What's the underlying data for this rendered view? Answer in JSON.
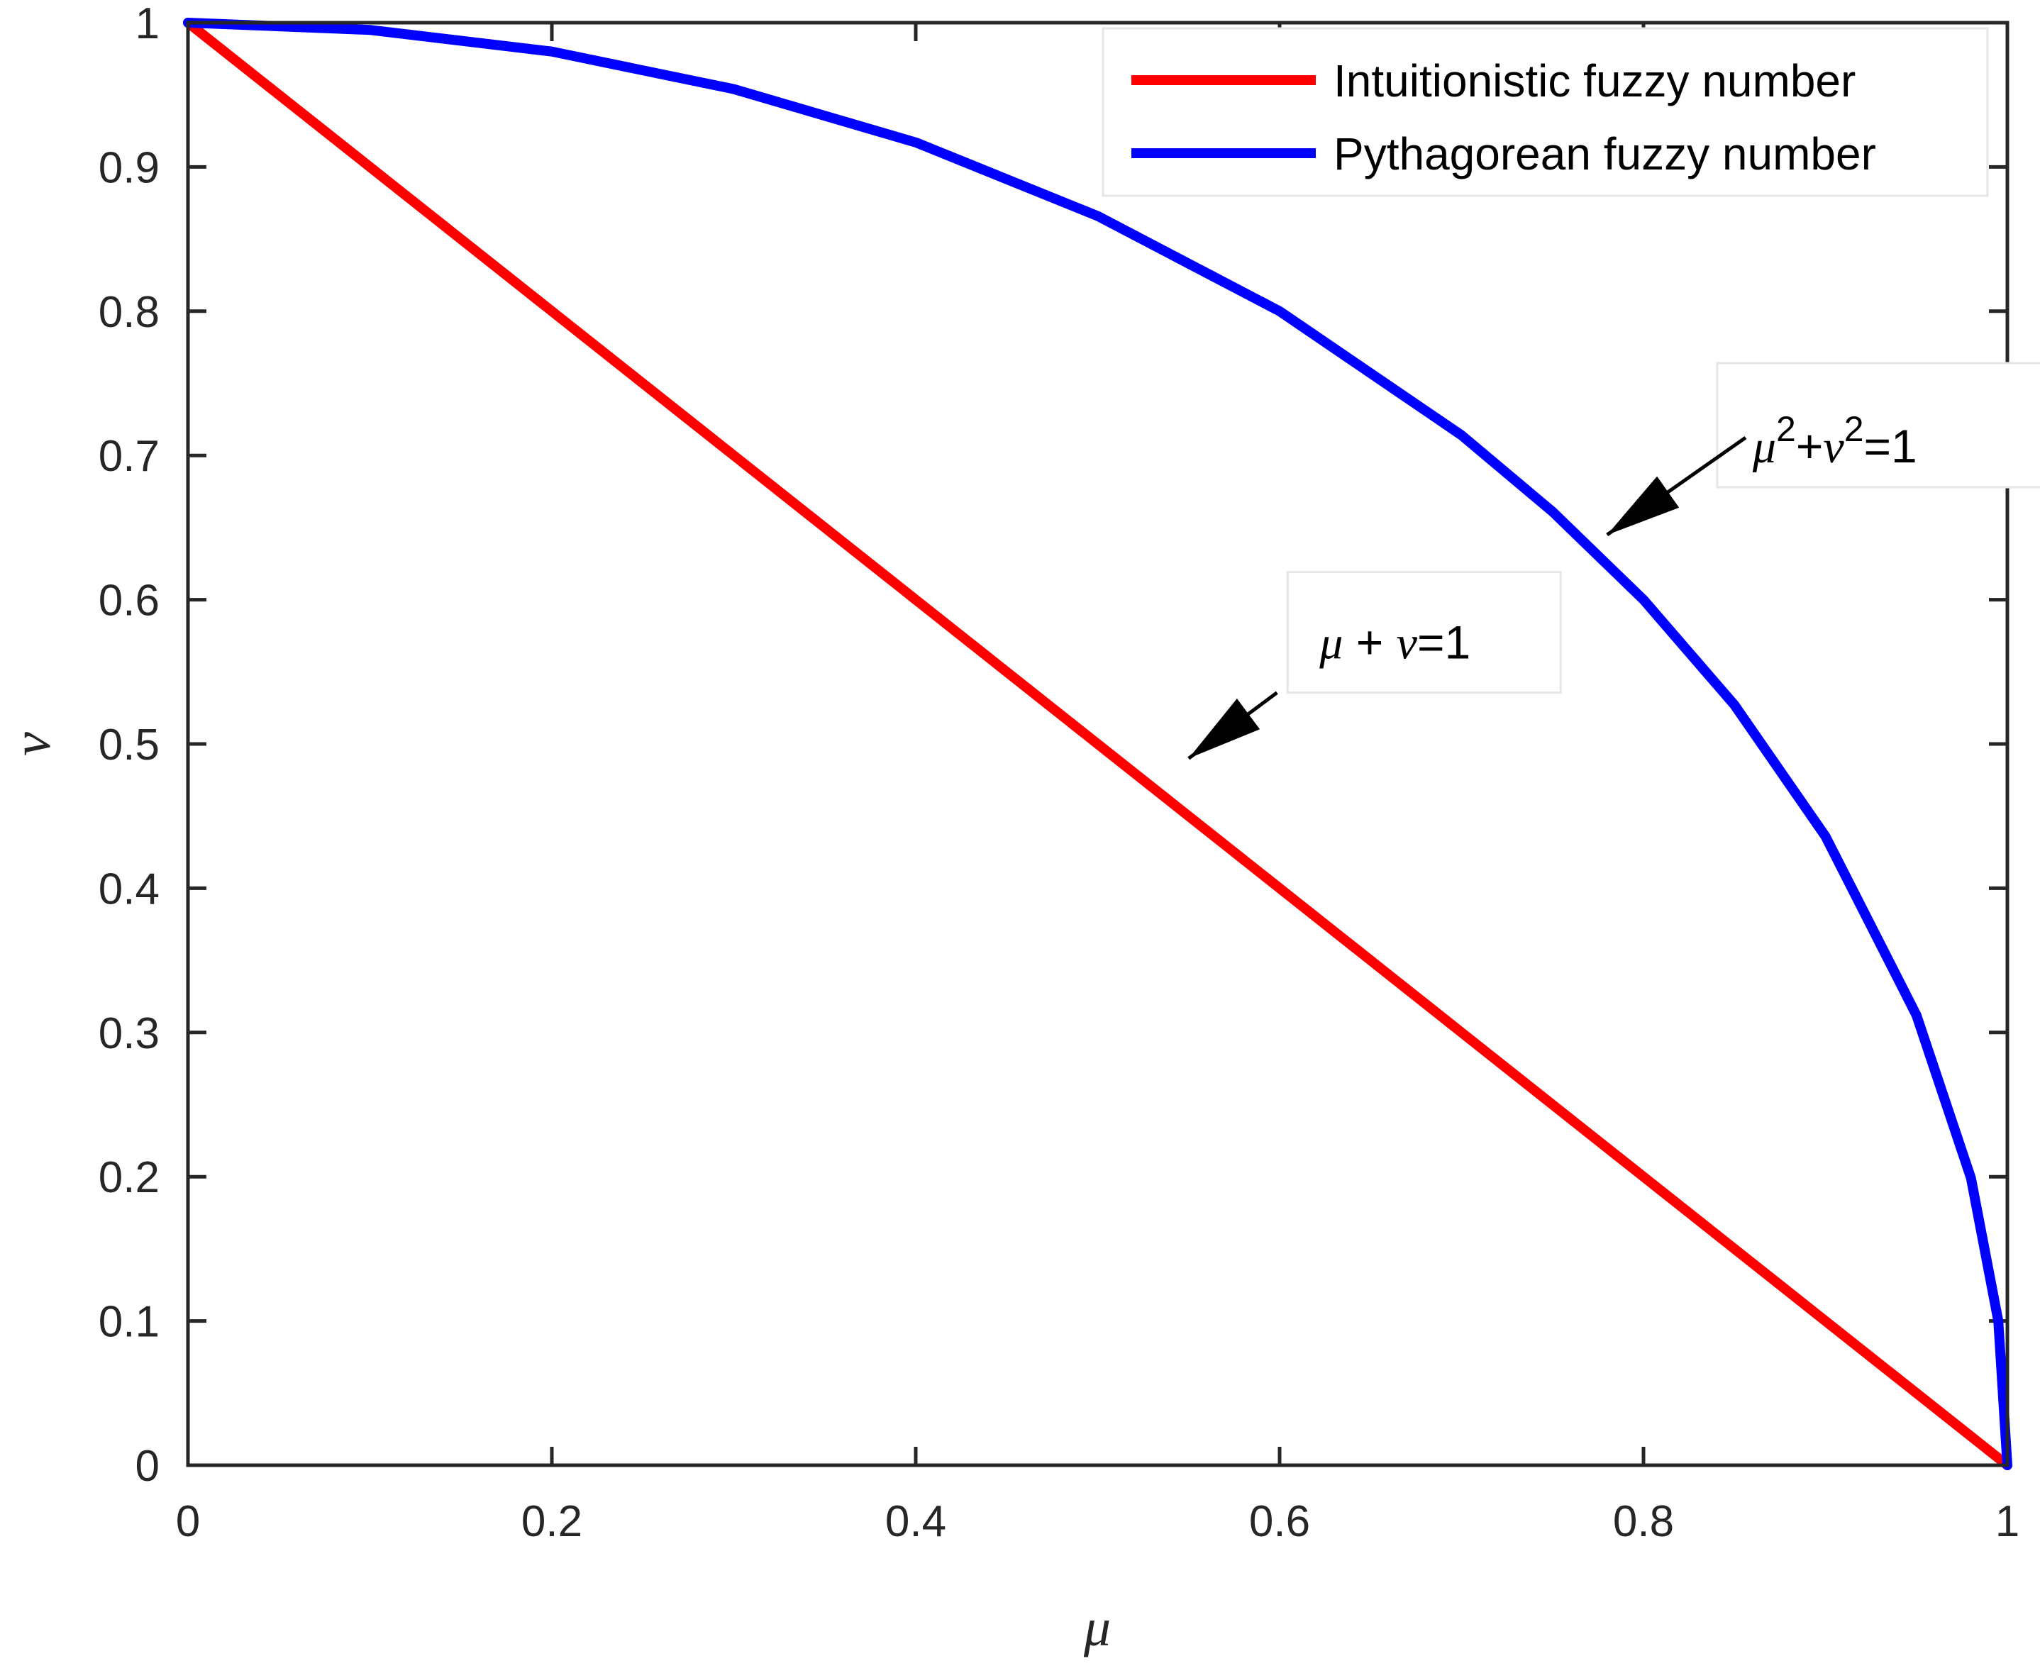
{
  "chart_data": {
    "type": "line",
    "title": "",
    "xlabel": "μ",
    "ylabel": "ν",
    "xlim": [
      0,
      1
    ],
    "ylim": [
      0,
      1
    ],
    "x_ticks": [
      0,
      0.2,
      0.4,
      0.6,
      0.8,
      1
    ],
    "y_ticks": [
      0,
      0.1,
      0.2,
      0.3,
      0.4,
      0.5,
      0.6,
      0.7,
      0.8,
      0.9,
      1
    ],
    "x_tick_labels": [
      "0",
      "0.2",
      "0.4",
      "0.6",
      "0.8",
      "1"
    ],
    "y_tick_labels": [
      "0",
      "0.1",
      "0.2",
      "0.3",
      "0.4",
      "0.5",
      "0.6",
      "0.7",
      "0.8",
      "0.9",
      "1"
    ],
    "grid": false,
    "legend_position": "top-right",
    "series": [
      {
        "name": "Intuitionistic fuzzy number",
        "color": "#ff0000",
        "x": [
          0,
          0.1,
          0.2,
          0.3,
          0.4,
          0.5,
          0.6,
          0.7,
          0.8,
          0.9,
          1
        ],
        "y": [
          1,
          0.9,
          0.8,
          0.7,
          0.6,
          0.5,
          0.4,
          0.3,
          0.2,
          0.1,
          0
        ]
      },
      {
        "name": "Pythagorean fuzzy number",
        "color": "#0000ff",
        "x": [
          0,
          0.1,
          0.2,
          0.3,
          0.4,
          0.5,
          0.6,
          0.7,
          0.75,
          0.8,
          0.85,
          0.9,
          0.95,
          0.98,
          0.995,
          1
        ],
        "y": [
          1,
          0.995,
          0.98,
          0.954,
          0.917,
          0.866,
          0.8,
          0.714,
          0.661,
          0.6,
          0.527,
          0.436,
          0.312,
          0.199,
          0.1,
          0
        ]
      }
    ],
    "annotations": [
      {
        "label_parts": [
          "μ",
          " + ",
          "ν",
          "=1"
        ],
        "text_at": [
          0.62,
          0.57
        ],
        "arrow_to": [
          0.55,
          0.49
        ]
      },
      {
        "label_parts": [
          "μ",
          "2",
          "+",
          "ν",
          "2",
          "=1"
        ],
        "text_at": [
          0.86,
          0.705
        ],
        "arrow_to": [
          0.78,
          0.645
        ]
      }
    ]
  }
}
